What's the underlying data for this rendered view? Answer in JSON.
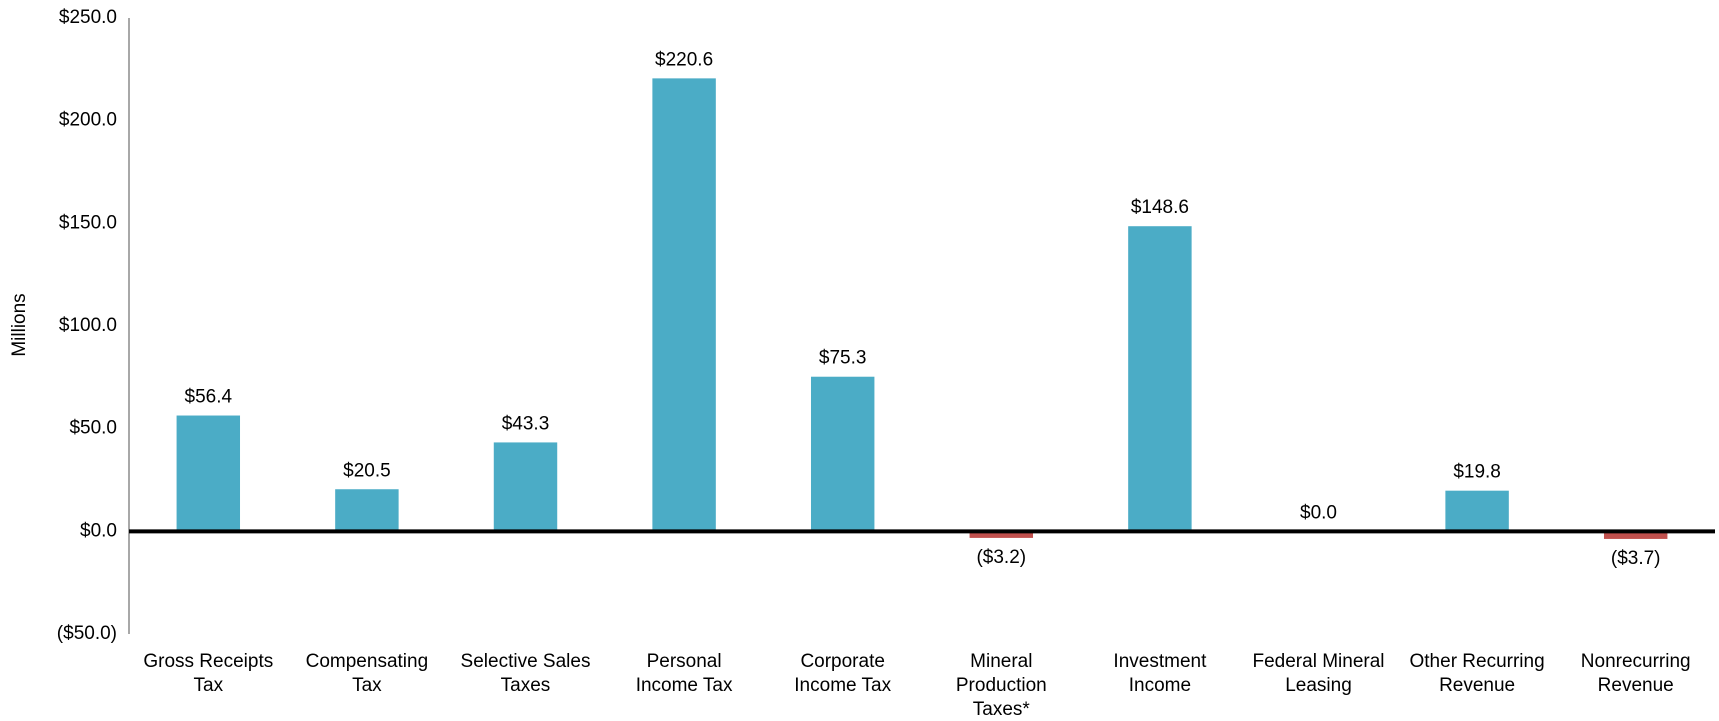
{
  "chart_data": {
    "type": "bar",
    "y_axis_label": "Millions",
    "categories": [
      "Gross Receipts\nTax",
      "Compensating\nTax",
      "Selective Sales\nTaxes",
      "Personal\nIncome Tax",
      "Corporate\nIncome Tax",
      "Mineral\nProduction\nTaxes*",
      "Investment\nIncome",
      "Federal Mineral\nLeasing",
      "Other Recurring\nRevenue",
      "Nonrecurring\nRevenue"
    ],
    "values": [
      56.4,
      20.5,
      43.3,
      220.6,
      75.3,
      -3.2,
      148.6,
      0.0,
      19.8,
      -3.7
    ],
    "value_labels": [
      "$56.4",
      "$20.5",
      "$43.3",
      "$220.6",
      "$75.3",
      "($3.2)",
      "$148.6",
      "$0.0",
      "$19.8",
      "($3.7)"
    ],
    "color": "#4bacc6",
    "negative_color": "#c0504d",
    "ylim": [
      -50,
      250
    ],
    "yticks": [
      {
        "value": -50,
        "label": "($50.0)"
      },
      {
        "value": 0,
        "label": "$0.0"
      },
      {
        "value": 50,
        "label": "$50.0"
      },
      {
        "value": 100,
        "label": "$100.0"
      },
      {
        "value": 150,
        "label": "$150.0"
      },
      {
        "value": 200,
        "label": "$200.0"
      },
      {
        "value": 250,
        "label": "$250.0"
      }
    ],
    "grid": false
  }
}
